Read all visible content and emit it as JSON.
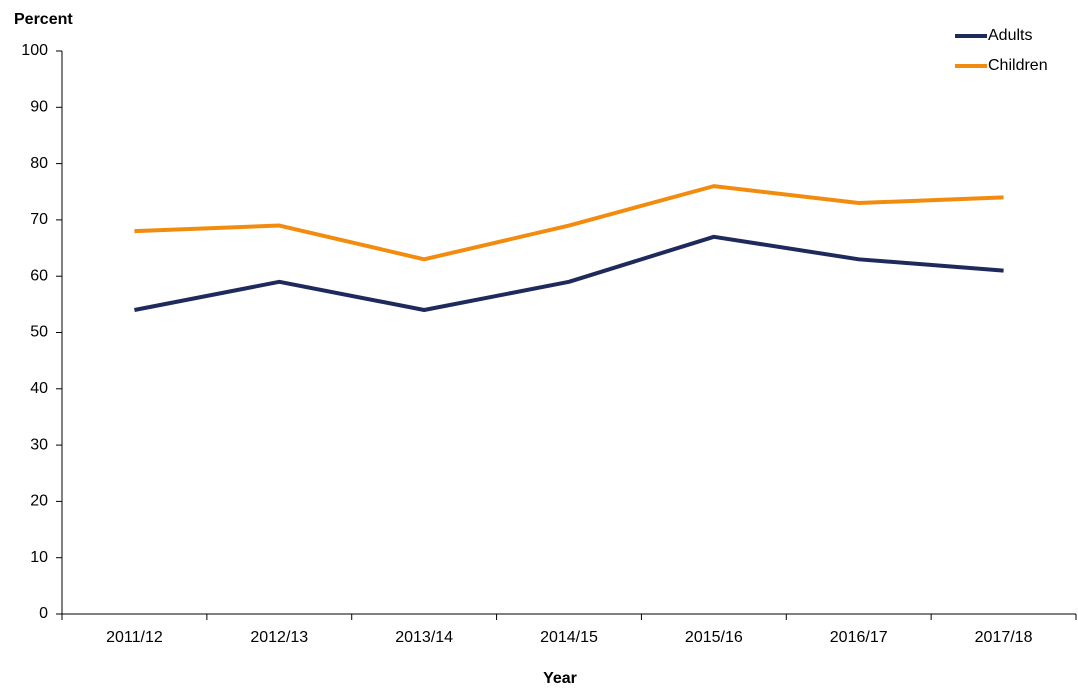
{
  "chart_data": {
    "type": "line",
    "y_label": "Percent",
    "x_label": "Year",
    "categories": [
      "2011/12",
      "2012/13",
      "2013/14",
      "2014/15",
      "2015/16",
      "2016/17",
      "2017/18"
    ],
    "series": [
      {
        "name": "Adults",
        "color": "#1f2a5c",
        "values": [
          54,
          59,
          54,
          59,
          67,
          63,
          61
        ]
      },
      {
        "name": "Children",
        "color": "#f28c0f",
        "values": [
          68,
          69,
          63,
          69,
          76,
          73,
          74
        ]
      }
    ],
    "ylim": [
      0,
      100
    ],
    "yticks": [
      0,
      10,
      20,
      30,
      40,
      50,
      60,
      70,
      80,
      90,
      100
    ],
    "grid": false,
    "legend": "top-right"
  }
}
